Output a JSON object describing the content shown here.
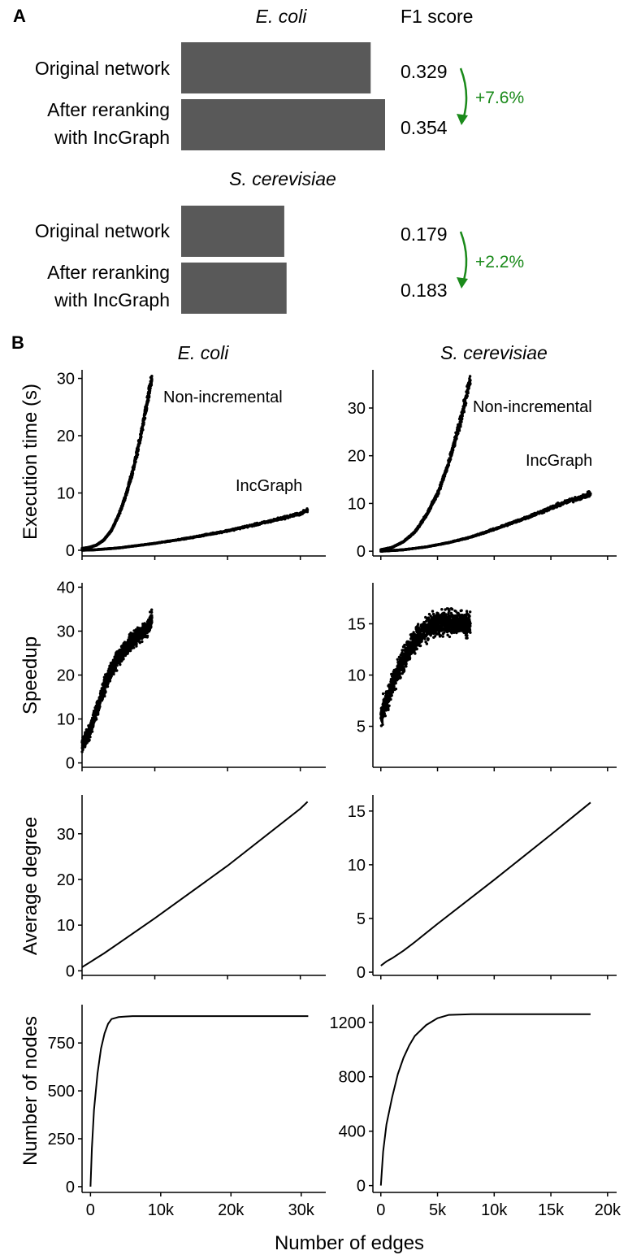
{
  "colors": {
    "bar": "#595959",
    "arrow": "#1a8a1a",
    "ink": "#000000"
  },
  "panel_a": {
    "letter": "A",
    "value_header": "F1 score",
    "groups": [
      {
        "organism": "E. coli",
        "rows": [
          {
            "label_line1": "Original network",
            "label_line2": "",
            "value_text": "0.329"
          },
          {
            "label_line1": "After reranking",
            "label_line2": "with IncGraph",
            "value_text": "0.354"
          }
        ],
        "change": "+7.6%"
      },
      {
        "organism": "S. cerevisiae",
        "rows": [
          {
            "label_line1": "Original network",
            "label_line2": "",
            "value_text": "0.179"
          },
          {
            "label_line1": "After reranking",
            "label_line2": "with IncGraph",
            "value_text": "0.183"
          }
        ],
        "change": "+2.2%"
      }
    ]
  },
  "panel_b": {
    "letter": "B",
    "columns": [
      "E. coli",
      "S. cerevisiae"
    ],
    "row_titles": [
      "Execution time (s)",
      "Speedup",
      "Average degree",
      "Number of nodes"
    ],
    "x_title": "Number of edges",
    "annotations": {
      "non_incremental": "Non-incremental",
      "incgraph": "IncGraph"
    }
  },
  "chart_data": [
    {
      "type": "bar",
      "panel": "A",
      "title": "E. coli",
      "categories": [
        "Original network",
        "After reranking with IncGraph"
      ],
      "values": [
        0.329,
        0.354
      ],
      "xlabel": "",
      "ylabel": "F1 score",
      "xlim": [
        0,
        0.354
      ]
    },
    {
      "type": "bar",
      "panel": "A",
      "title": "S. cerevisiae",
      "categories": [
        "Original network",
        "After reranking with IncGraph"
      ],
      "values": [
        0.179,
        0.183
      ],
      "xlabel": "",
      "ylabel": "F1 score",
      "xlim": [
        0,
        0.354
      ]
    },
    {
      "type": "scatter",
      "panel": "B",
      "title": "E. coli",
      "ylabel": "Execution time (s)",
      "xlim": [
        0,
        33500
      ],
      "ylim": [
        -1,
        31.5
      ],
      "xticks": [
        0,
        10000,
        20000,
        30000
      ],
      "xtick_labels": [
        "0",
        "10k",
        "20k",
        "30k"
      ],
      "yticks": [
        0,
        10,
        20,
        30
      ],
      "ytick_labels": [
        "0",
        "10",
        "20",
        "30"
      ],
      "show_x_tick_labels": false,
      "series": [
        {
          "name": "Non-incremental",
          "x": [
            0,
            1000,
            2000,
            3000,
            4000,
            5000,
            6000,
            7000,
            8000,
            9000,
            9600
          ],
          "y": [
            0.3,
            0.5,
            0.9,
            1.8,
            3.4,
            6,
            9.5,
            14,
            19.5,
            26,
            30
          ]
        },
        {
          "name": "IncGraph",
          "x": [
            0,
            2000,
            5000,
            10000,
            15000,
            20000,
            25000,
            30000,
            31000
          ],
          "y": [
            0,
            0.1,
            0.4,
            1.2,
            2.2,
            3.4,
            4.8,
            6.4,
            7
          ]
        }
      ]
    },
    {
      "type": "scatter",
      "panel": "B",
      "title": "S. cerevisiae",
      "ylabel": "",
      "xlim": [
        -700,
        20800
      ],
      "ylim": [
        -1,
        38
      ],
      "xticks": [
        0,
        5000,
        10000,
        15000,
        20000
      ],
      "xtick_labels": [
        "0",
        "5k",
        "10k",
        "15k",
        "20k"
      ],
      "yticks": [
        0,
        10,
        20,
        30
      ],
      "ytick_labels": [
        "0",
        "10",
        "20",
        "30"
      ],
      "show_x_tick_labels": false,
      "series": [
        {
          "name": "Non-incremental",
          "x": [
            0,
            1000,
            2000,
            3000,
            4000,
            5000,
            6000,
            7000,
            7900
          ],
          "y": [
            0.3,
            0.8,
            2,
            4,
            7.5,
            12,
            18.5,
            27,
            36
          ]
        },
        {
          "name": "IncGraph",
          "x": [
            0,
            2000,
            4000,
            6000,
            8000,
            10000,
            12000,
            14000,
            16000,
            18500
          ],
          "y": [
            0,
            0.3,
            0.9,
            1.8,
            3,
            4.6,
            6.3,
            8.1,
            10,
            12
          ]
        }
      ]
    },
    {
      "type": "scatter",
      "panel": "B",
      "title": "E. coli",
      "ylabel": "Speedup",
      "xlim": [
        0,
        33500
      ],
      "ylim": [
        -1,
        41
      ],
      "xticks": [
        0,
        10000,
        20000,
        30000
      ],
      "xtick_labels": [
        "0",
        "10k",
        "20k",
        "30k"
      ],
      "yticks": [
        0,
        10,
        20,
        30,
        40
      ],
      "ytick_labels": [
        "0",
        "10",
        "20",
        "30",
        "40"
      ],
      "show_x_tick_labels": false,
      "series": [
        {
          "name": "",
          "x": [
            0,
            1000,
            2000,
            3000,
            4000,
            5000,
            6000,
            7000,
            8000,
            9000,
            9600
          ],
          "y": [
            4,
            7,
            12,
            17,
            21,
            24,
            26,
            28,
            29.5,
            30.5,
            33
          ]
        }
      ]
    },
    {
      "type": "scatter",
      "panel": "B",
      "title": "S. cerevisiae",
      "ylabel": "",
      "xlim": [
        -700,
        20800
      ],
      "ylim": [
        1,
        19
      ],
      "xticks": [
        0,
        5000,
        10000,
        15000,
        20000
      ],
      "xtick_labels": [
        "0",
        "5k",
        "10k",
        "15k",
        "20k"
      ],
      "yticks": [
        5,
        10,
        15
      ],
      "ytick_labels": [
        "5",
        "10",
        "15"
      ],
      "show_x_tick_labels": false,
      "series": [
        {
          "name": "",
          "x": [
            0,
            500,
            1000,
            1500,
            2000,
            2500,
            3000,
            4000,
            5000,
            6000,
            7000,
            7900
          ],
          "y": [
            6,
            7.5,
            9,
            10.5,
            11.5,
            12.5,
            13.5,
            14.5,
            15,
            15.2,
            15,
            15
          ]
        }
      ]
    },
    {
      "type": "line",
      "panel": "B",
      "title": "E. coli",
      "ylabel": "Average degree",
      "xlim": [
        0,
        33500
      ],
      "ylim": [
        -1,
        38.5
      ],
      "xticks": [
        0,
        10000,
        20000,
        30000
      ],
      "xtick_labels": [
        "0",
        "10k",
        "20k",
        "30k"
      ],
      "yticks": [
        0,
        10,
        20,
        30
      ],
      "ytick_labels": [
        "0",
        "10",
        "20",
        "30"
      ],
      "show_x_tick_labels": false,
      "series": [
        {
          "name": "",
          "x": [
            0,
            1000,
            2000,
            3000,
            5000,
            10000,
            20000,
            30000,
            31000
          ],
          "y": [
            0.8,
            1.8,
            2.8,
            3.8,
            6,
            11.5,
            23,
            35.5,
            37
          ]
        }
      ]
    },
    {
      "type": "line",
      "panel": "B",
      "title": "S. cerevisiae",
      "ylabel": "",
      "xlim": [
        -700,
        20800
      ],
      "ylim": [
        -0.3,
        16.5
      ],
      "xticks": [
        0,
        5000,
        10000,
        15000,
        20000
      ],
      "xtick_labels": [
        "0",
        "5k",
        "10k",
        "15k",
        "20k"
      ],
      "yticks": [
        0,
        5,
        10,
        15
      ],
      "ytick_labels": [
        "0",
        "5",
        "10",
        "15"
      ],
      "show_x_tick_labels": false,
      "series": [
        {
          "name": "",
          "x": [
            0,
            500,
            1000,
            2000,
            3000,
            5000,
            10000,
            15000,
            18500
          ],
          "y": [
            0.6,
            1,
            1.3,
            2,
            2.8,
            4.5,
            8.6,
            12.8,
            15.8
          ]
        }
      ]
    },
    {
      "type": "line",
      "panel": "B",
      "title": "E. coli",
      "ylabel": "Number of nodes",
      "xlim": [
        -1200,
        33500
      ],
      "ylim": [
        -30,
        950
      ],
      "xticks": [
        0,
        10000,
        20000,
        30000
      ],
      "xtick_labels": [
        "0",
        "10k",
        "20k",
        "30k"
      ],
      "yticks": [
        0,
        250,
        500,
        750
      ],
      "ytick_labels": [
        "0",
        "250",
        "500",
        "750"
      ],
      "show_x_tick_labels": true,
      "series": [
        {
          "name": "",
          "x": [
            0,
            200,
            500,
            1000,
            1500,
            2000,
            2500,
            3000,
            4000,
            5000,
            6000,
            10000,
            20000,
            31000
          ],
          "y": [
            0,
            200,
            400,
            590,
            720,
            800,
            850,
            875,
            885,
            888,
            890,
            890,
            890,
            890
          ]
        }
      ]
    },
    {
      "type": "line",
      "panel": "B",
      "title": "S. cerevisiae",
      "ylabel": "",
      "xlim": [
        -700,
        20800
      ],
      "ylim": [
        -50,
        1330
      ],
      "xticks": [
        0,
        5000,
        10000,
        15000,
        20000
      ],
      "xtick_labels": [
        "0",
        "5k",
        "10k",
        "15k",
        "20k"
      ],
      "yticks": [
        0,
        400,
        800,
        1200
      ],
      "ytick_labels": [
        "0",
        "400",
        "800",
        "1200"
      ],
      "show_x_tick_labels": true,
      "series": [
        {
          "name": "",
          "x": [
            0,
            200,
            500,
            1000,
            1500,
            2000,
            2500,
            3000,
            4000,
            5000,
            6000,
            8000,
            12000,
            18500
          ],
          "y": [
            0,
            250,
            450,
            650,
            820,
            940,
            1030,
            1100,
            1180,
            1230,
            1255,
            1260,
            1260,
            1260
          ]
        }
      ]
    }
  ]
}
